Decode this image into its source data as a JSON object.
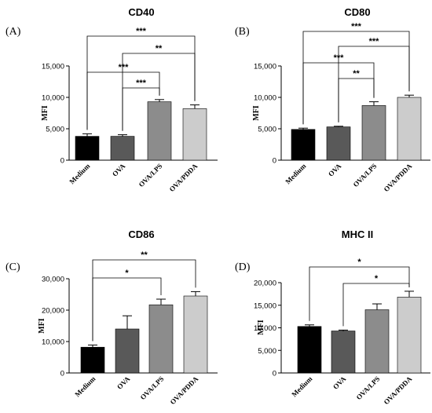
{
  "chart_data": [
    {
      "type": "bar",
      "panel_label": "(A)",
      "title": "CD40",
      "ylabel": "MFI",
      "ylim": [
        0,
        15000
      ],
      "yticks": [
        0,
        5000,
        10000,
        15000
      ],
      "ytick_labels": [
        "0",
        "5,000",
        "10,000",
        "15,000"
      ],
      "categories": [
        "Medium",
        "OVA",
        "OVA/LPS",
        "OVA/PDDA"
      ],
      "values": [
        3800,
        3800,
        9300,
        8200
      ],
      "errors": [
        400,
        250,
        350,
        600
      ],
      "colors": [
        "#000000",
        "#595959",
        "#8c8c8c",
        "#cccccc"
      ],
      "significance": [
        {
          "from": 0,
          "to": 3,
          "label": "***"
        },
        {
          "from": 1,
          "to": 3,
          "label": "**"
        },
        {
          "from": 0,
          "to": 2,
          "label": "***"
        },
        {
          "from": 1,
          "to": 2,
          "label": "***"
        }
      ]
    },
    {
      "type": "bar",
      "panel_label": "(B)",
      "title": "CD80",
      "ylabel": "MFI",
      "ylim": [
        0,
        15000
      ],
      "yticks": [
        0,
        5000,
        10000,
        15000
      ],
      "ytick_labels": [
        "0",
        "5,000",
        "10,000",
        "15,000"
      ],
      "categories": [
        "Medium",
        "OVA",
        "OVA/LPS",
        "OVA/PDDA"
      ],
      "values": [
        4900,
        5300,
        8700,
        10000
      ],
      "errors": [
        200,
        100,
        600,
        350
      ],
      "colors": [
        "#000000",
        "#595959",
        "#8c8c8c",
        "#cccccc"
      ],
      "significance": [
        {
          "from": 0,
          "to": 3,
          "label": "***"
        },
        {
          "from": 1,
          "to": 3,
          "label": "***"
        },
        {
          "from": 0,
          "to": 2,
          "label": "***"
        },
        {
          "from": 1,
          "to": 2,
          "label": "**"
        }
      ]
    },
    {
      "type": "bar",
      "panel_label": "(C)",
      "title": "CD86",
      "ylabel": "MFI",
      "ylim": [
        0,
        30000
      ],
      "yticks": [
        0,
        10000,
        20000,
        30000
      ],
      "ytick_labels": [
        "0",
        "10,000",
        "20,000",
        "30,000"
      ],
      "categories": [
        "Medium",
        "OVA",
        "OVA/LPS",
        "OVA/PDDA"
      ],
      "values": [
        8200,
        14000,
        21700,
        24500
      ],
      "errors": [
        700,
        4200,
        1800,
        1400
      ],
      "colors": [
        "#000000",
        "#595959",
        "#8c8c8c",
        "#cccccc"
      ],
      "significance": [
        {
          "from": 0,
          "to": 3,
          "label": "**"
        },
        {
          "from": 0,
          "to": 2,
          "label": "*"
        }
      ]
    },
    {
      "type": "bar",
      "panel_label": "(D)",
      "title": "MHC II",
      "ylabel": "MFI",
      "ylim": [
        0,
        20000
      ],
      "yticks": [
        0,
        5000,
        10000,
        15000,
        20000
      ],
      "ytick_labels": [
        "0",
        "5,000",
        "10,000",
        "15,000",
        "20,000"
      ],
      "categories": [
        "Medium",
        "OVA",
        "OVA/LPS",
        "OVA/PDDA"
      ],
      "values": [
        10300,
        9300,
        14000,
        16800
      ],
      "errors": [
        350,
        200,
        1300,
        1300
      ],
      "colors": [
        "#000000",
        "#595959",
        "#8c8c8c",
        "#cccccc"
      ],
      "significance": [
        {
          "from": 0,
          "to": 3,
          "label": "*"
        },
        {
          "from": 1,
          "to": 3,
          "label": "*"
        }
      ]
    }
  ]
}
